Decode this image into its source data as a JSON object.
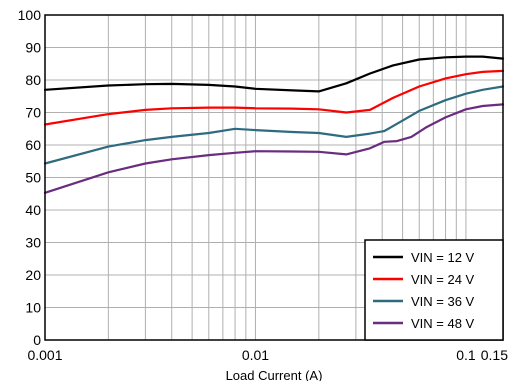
{
  "chart_data": {
    "type": "line",
    "title": "",
    "xlabel": "Load Current (A)",
    "ylabel": "",
    "x_scale": "log",
    "xlim": [
      0.001,
      0.15
    ],
    "ylim": [
      0,
      100
    ],
    "x_ticks": [
      {
        "value": 0.001,
        "label": "0.001"
      },
      {
        "value": 0.01,
        "label": "0.01"
      },
      {
        "value": 0.1,
        "label": "0.1"
      },
      {
        "value": 0.15,
        "label": "0.15"
      }
    ],
    "y_ticks": [
      0,
      10,
      20,
      30,
      40,
      50,
      60,
      70,
      80,
      90,
      100
    ],
    "grid": true,
    "legend_position": "bottom-right",
    "series": [
      {
        "name": "VIN = 12 V",
        "color": "#000000",
        "x": [
          0.001,
          0.002,
          0.003,
          0.004,
          0.006,
          0.008,
          0.01,
          0.015,
          0.02,
          0.027,
          0.035,
          0.045,
          0.06,
          0.08,
          0.1,
          0.12,
          0.15
        ],
        "y": [
          77.0,
          78.3,
          78.7,
          78.8,
          78.5,
          78.0,
          77.3,
          76.8,
          76.5,
          79.0,
          82.0,
          84.5,
          86.3,
          87.0,
          87.2,
          87.2,
          86.6
        ]
      },
      {
        "name": "VIN = 24 V",
        "color": "#ff0000",
        "x": [
          0.001,
          0.002,
          0.003,
          0.004,
          0.006,
          0.008,
          0.01,
          0.015,
          0.02,
          0.027,
          0.035,
          0.045,
          0.06,
          0.08,
          0.1,
          0.12,
          0.15
        ],
        "y": [
          66.3,
          69.5,
          70.8,
          71.3,
          71.5,
          71.5,
          71.3,
          71.2,
          71.0,
          70.0,
          70.8,
          74.5,
          78.0,
          80.5,
          81.8,
          82.5,
          82.8
        ]
      },
      {
        "name": "VIN = 36 V",
        "color": "#2f6b80",
        "x": [
          0.001,
          0.002,
          0.003,
          0.004,
          0.006,
          0.008,
          0.01,
          0.015,
          0.02,
          0.027,
          0.035,
          0.041,
          0.05,
          0.06,
          0.08,
          0.1,
          0.12,
          0.15
        ],
        "y": [
          54.3,
          59.5,
          61.5,
          62.5,
          63.7,
          65.0,
          64.6,
          64.0,
          63.7,
          62.5,
          63.5,
          64.3,
          67.5,
          70.5,
          73.8,
          75.8,
          77.0,
          78.0
        ]
      },
      {
        "name": "VIN = 48 V",
        "color": "#6a2c7f",
        "x": [
          0.001,
          0.002,
          0.003,
          0.004,
          0.006,
          0.008,
          0.01,
          0.015,
          0.02,
          0.027,
          0.035,
          0.041,
          0.047,
          0.055,
          0.065,
          0.08,
          0.1,
          0.12,
          0.15
        ],
        "y": [
          45.3,
          51.6,
          54.3,
          55.6,
          56.9,
          57.6,
          58.1,
          58.0,
          57.9,
          57.1,
          59.0,
          61.0,
          61.2,
          62.5,
          65.5,
          68.5,
          71.0,
          72.0,
          72.5
        ]
      }
    ]
  }
}
